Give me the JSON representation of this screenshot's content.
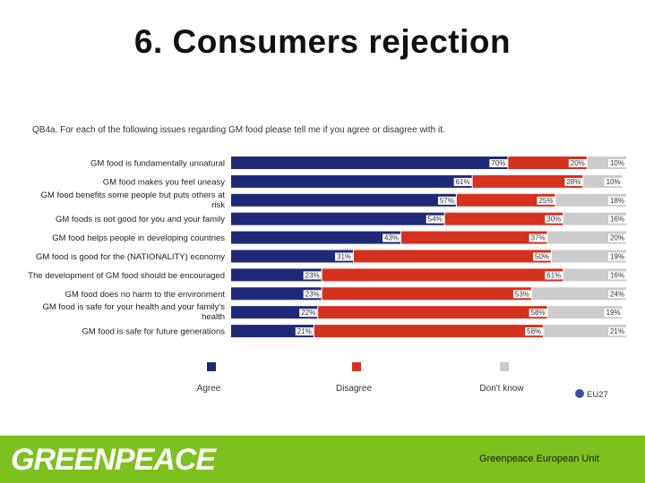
{
  "slide": {
    "title": "6. Consumers rejection",
    "footer_text": "Greenpeace European Unit",
    "logo_text": "GREENPEACE"
  },
  "colors": {
    "agree": "#1e2a78",
    "disagree": "#d4311f",
    "dont_know": "#cccccc",
    "footer": "#7cc11d",
    "eu_badge": "#3a4fa8"
  },
  "chart_data": {
    "type": "bar",
    "stacked": true,
    "orientation": "horizontal",
    "title": "QB4a. For each of the following issues regarding GM food please tell me if you agree or disagree with it.",
    "categories": [
      "GM food is fundamentally unnatural",
      "GM food makes you feel uneasy",
      "GM food benefits some people but puts others at risk",
      "GM foods is not good for you and your family",
      "GM food helps people in developing countries",
      "GM food is good for the (NATIONALITY) economy",
      "The development of GM food should be encouraged",
      "GM food does no harm to the environment",
      "GM food is safe for your health and your family's health",
      "GM food is safe for future generations"
    ],
    "series": [
      {
        "name": "Agree",
        "values": [
          70,
          61,
          57,
          54,
          43,
          31,
          23,
          23,
          22,
          21
        ]
      },
      {
        "name": "Disagree",
        "values": [
          20,
          28,
          25,
          30,
          37,
          50,
          61,
          53,
          58,
          58
        ]
      },
      {
        "name": "Don't know",
        "values": [
          10,
          10,
          18,
          16,
          20,
          19,
          16,
          24,
          19,
          21
        ]
      }
    ],
    "value_suffix": "%",
    "legend": [
      "Agree",
      "Disagree",
      "Don't know"
    ],
    "legend_placement": "bottom",
    "badge": "EU27",
    "xlim": [
      0,
      100
    ]
  }
}
